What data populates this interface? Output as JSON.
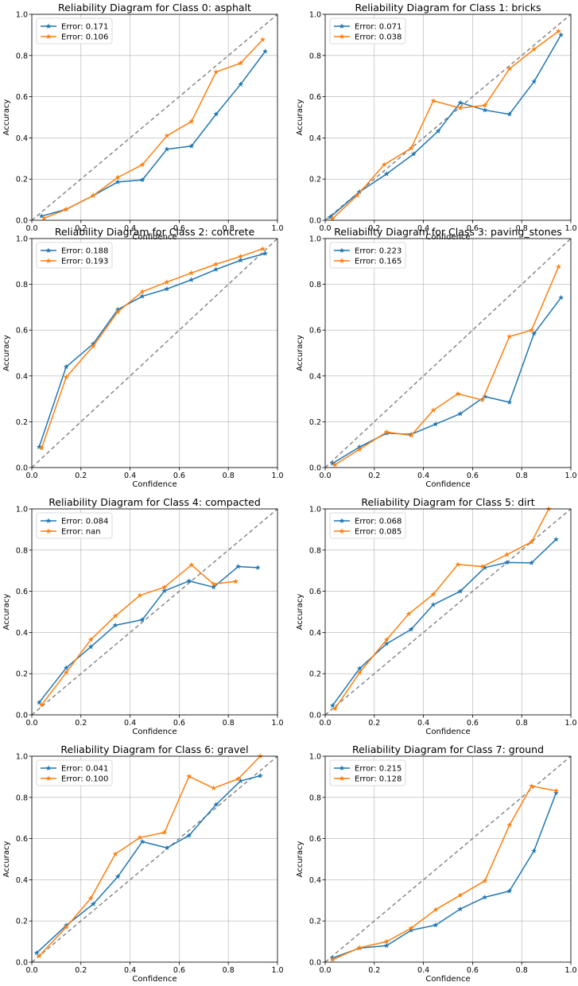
{
  "figure": {
    "diagonal_color": "#808080",
    "grid": true,
    "xlabel": "Confidence",
    "ylabel": "Accuracy",
    "xlim": [
      0,
      1
    ],
    "ylim": [
      0,
      1
    ],
    "ticks": [
      "0.0",
      "0.2",
      "0.4",
      "0.6",
      "0.8",
      "1.0"
    ]
  },
  "chart_data": [
    {
      "type": "line",
      "title": "Reliability Diagram for Class 0: asphalt",
      "xlabel": "Confidence",
      "ylabel": "Accuracy",
      "xlim": [
        0,
        1
      ],
      "ylim": [
        0,
        1
      ],
      "legend": "top-left",
      "series": [
        {
          "name": "Error: 0.171",
          "color": "#1f77b4",
          "marker": "star",
          "x": [
            0.04,
            0.14,
            0.25,
            0.35,
            0.45,
            0.55,
            0.65,
            0.75,
            0.85,
            0.95
          ],
          "y": [
            0.02,
            0.053,
            0.12,
            0.186,
            0.196,
            0.345,
            0.36,
            0.515,
            0.66,
            0.82
          ]
        },
        {
          "name": "Error: 0.106",
          "color": "#ff7f0e",
          "marker": "star",
          "x": [
            0.05,
            0.14,
            0.25,
            0.35,
            0.45,
            0.55,
            0.65,
            0.75,
            0.85,
            0.94
          ],
          "y": [
            0.01,
            0.053,
            0.12,
            0.208,
            0.27,
            0.41,
            0.48,
            0.72,
            0.763,
            0.877
          ]
        }
      ]
    },
    {
      "type": "line",
      "title": "Reliability Diagram for Class 1: bricks",
      "xlabel": "Confidence",
      "ylabel": "Accuracy",
      "xlim": [
        0,
        1
      ],
      "ylim": [
        0,
        1
      ],
      "legend": "top-left",
      "series": [
        {
          "name": "Error: 0.071",
          "color": "#1f77b4",
          "marker": "star",
          "x": [
            0.02,
            0.14,
            0.25,
            0.36,
            0.46,
            0.55,
            0.65,
            0.75,
            0.85,
            0.96
          ],
          "y": [
            0.015,
            0.138,
            0.225,
            0.322,
            0.433,
            0.571,
            0.535,
            0.515,
            0.673,
            0.9
          ]
        },
        {
          "name": "Error: 0.038",
          "color": "#ff7f0e",
          "marker": "star",
          "x": [
            0.03,
            0.13,
            0.24,
            0.35,
            0.44,
            0.55,
            0.65,
            0.75,
            0.85,
            0.95
          ],
          "y": [
            0.008,
            0.12,
            0.27,
            0.35,
            0.58,
            0.545,
            0.558,
            0.735,
            0.83,
            0.918
          ]
        }
      ]
    },
    {
      "type": "line",
      "title": "Reliability Diagram for Class 2: concrete",
      "xlabel": "Confidence",
      "ylabel": "Accuracy",
      "xlim": [
        0,
        1
      ],
      "ylim": [
        0,
        1
      ],
      "legend": "top-left",
      "series": [
        {
          "name": "Error: 0.188",
          "color": "#1f77b4",
          "marker": "star",
          "x": [
            0.03,
            0.14,
            0.25,
            0.35,
            0.45,
            0.55,
            0.65,
            0.75,
            0.85,
            0.95
          ],
          "y": [
            0.09,
            0.44,
            0.54,
            0.69,
            0.748,
            0.78,
            0.82,
            0.865,
            0.905,
            0.935
          ]
        },
        {
          "name": "Error: 0.193",
          "color": "#ff7f0e",
          "marker": "star",
          "x": [
            0.04,
            0.14,
            0.25,
            0.35,
            0.45,
            0.55,
            0.65,
            0.75,
            0.85,
            0.94
          ],
          "y": [
            0.085,
            0.395,
            0.53,
            0.68,
            0.768,
            0.81,
            0.85,
            0.888,
            0.922,
            0.955
          ]
        }
      ]
    },
    {
      "type": "line",
      "title": "Reliability Diagram for Class 3: paving_stones",
      "xlabel": "Confidence",
      "ylabel": "Accuracy",
      "xlim": [
        0,
        1
      ],
      "ylim": [
        0,
        1
      ],
      "legend": "top-left",
      "series": [
        {
          "name": "Error: 0.223",
          "color": "#1f77b4",
          "marker": "star",
          "x": [
            0.03,
            0.14,
            0.25,
            0.35,
            0.45,
            0.55,
            0.65,
            0.75,
            0.85,
            0.96
          ],
          "y": [
            0.018,
            0.09,
            0.15,
            0.145,
            0.19,
            0.235,
            0.31,
            0.285,
            0.585,
            0.742
          ]
        },
        {
          "name": "Error: 0.165",
          "color": "#ff7f0e",
          "marker": "star",
          "x": [
            0.04,
            0.14,
            0.25,
            0.35,
            0.44,
            0.54,
            0.64,
            0.75,
            0.84,
            0.95
          ],
          "y": [
            0.012,
            0.08,
            0.155,
            0.14,
            0.25,
            0.322,
            0.295,
            0.572,
            0.6,
            0.877
          ]
        }
      ]
    },
    {
      "type": "line",
      "title": "Reliability Diagram for Class 4: compacted",
      "xlabel": "Confidence",
      "ylabel": "Accuracy",
      "xlim": [
        0,
        1
      ],
      "ylim": [
        0,
        1
      ],
      "legend": "top-left",
      "series": [
        {
          "name": "Error: 0.084",
          "color": "#1f77b4",
          "marker": "star",
          "x": [
            0.03,
            0.14,
            0.24,
            0.34,
            0.45,
            0.54,
            0.64,
            0.74,
            0.84,
            0.92
          ],
          "y": [
            0.06,
            0.228,
            0.33,
            0.435,
            0.462,
            0.602,
            0.65,
            0.62,
            0.72,
            0.715
          ]
        },
        {
          "name": "Error: nan",
          "color": "#ff7f0e",
          "marker": "star",
          "x": [
            0.04,
            0.14,
            0.24,
            0.34,
            0.44,
            0.54,
            0.65,
            0.74,
            0.83
          ],
          "y": [
            0.048,
            0.205,
            0.365,
            0.48,
            0.58,
            0.62,
            0.728,
            0.635,
            0.648
          ]
        }
      ]
    },
    {
      "type": "line",
      "title": "Reliability Diagram for Class 5: dirt",
      "xlabel": "Confidence",
      "ylabel": "Accuracy",
      "xlim": [
        0,
        1
      ],
      "ylim": [
        0,
        1
      ],
      "legend": "top-left",
      "series": [
        {
          "name": "Error: 0.068",
          "color": "#1f77b4",
          "marker": "star",
          "x": [
            0.03,
            0.14,
            0.25,
            0.35,
            0.44,
            0.55,
            0.65,
            0.74,
            0.84,
            0.94
          ],
          "y": [
            0.045,
            0.225,
            0.345,
            0.415,
            0.535,
            0.6,
            0.715,
            0.74,
            0.738,
            0.852
          ]
        },
        {
          "name": "Error: 0.085",
          "color": "#ff7f0e",
          "marker": "star",
          "x": [
            0.04,
            0.14,
            0.25,
            0.34,
            0.44,
            0.54,
            0.64,
            0.74,
            0.84,
            0.91
          ],
          "y": [
            0.03,
            0.205,
            0.365,
            0.49,
            0.585,
            0.73,
            0.72,
            0.778,
            0.84,
            1.0
          ]
        }
      ]
    },
    {
      "type": "line",
      "title": "Reliability Diagram for Class 6: gravel",
      "xlabel": "Confidence",
      "ylabel": "Accuracy",
      "xlim": [
        0,
        1
      ],
      "ylim": [
        0,
        1
      ],
      "legend": "top-left",
      "series": [
        {
          "name": "Error: 0.041",
          "color": "#1f77b4",
          "marker": "star",
          "x": [
            0.02,
            0.14,
            0.25,
            0.35,
            0.45,
            0.55,
            0.64,
            0.75,
            0.85,
            0.93
          ],
          "y": [
            0.045,
            0.178,
            0.282,
            0.415,
            0.585,
            0.555,
            0.615,
            0.765,
            0.88,
            0.905
          ]
        },
        {
          "name": "Error: 0.100",
          "color": "#ff7f0e",
          "marker": "star",
          "x": [
            0.03,
            0.14,
            0.24,
            0.34,
            0.44,
            0.54,
            0.64,
            0.74,
            0.84,
            0.93
          ],
          "y": [
            0.03,
            0.17,
            0.31,
            0.525,
            0.605,
            0.63,
            0.902,
            0.845,
            0.89,
            1.0
          ]
        }
      ]
    },
    {
      "type": "line",
      "title": "Reliability Diagram for Class 7: ground",
      "xlabel": "Confidence",
      "ylabel": "Accuracy",
      "xlim": [
        0,
        1
      ],
      "ylim": [
        0,
        1
      ],
      "legend": "top-left",
      "series": [
        {
          "name": "Error: 0.215",
          "color": "#1f77b4",
          "marker": "star",
          "x": [
            0.03,
            0.14,
            0.25,
            0.35,
            0.45,
            0.55,
            0.65,
            0.75,
            0.85,
            0.94
          ],
          "y": [
            0.02,
            0.068,
            0.08,
            0.155,
            0.18,
            0.258,
            0.315,
            0.345,
            0.54,
            0.822
          ]
        },
        {
          "name": "Error: 0.128",
          "color": "#ff7f0e",
          "marker": "star",
          "x": [
            0.03,
            0.14,
            0.25,
            0.35,
            0.45,
            0.55,
            0.65,
            0.75,
            0.84,
            0.94
          ],
          "y": [
            0.012,
            0.07,
            0.1,
            0.165,
            0.255,
            0.325,
            0.395,
            0.665,
            0.855,
            0.832
          ]
        }
      ]
    }
  ]
}
